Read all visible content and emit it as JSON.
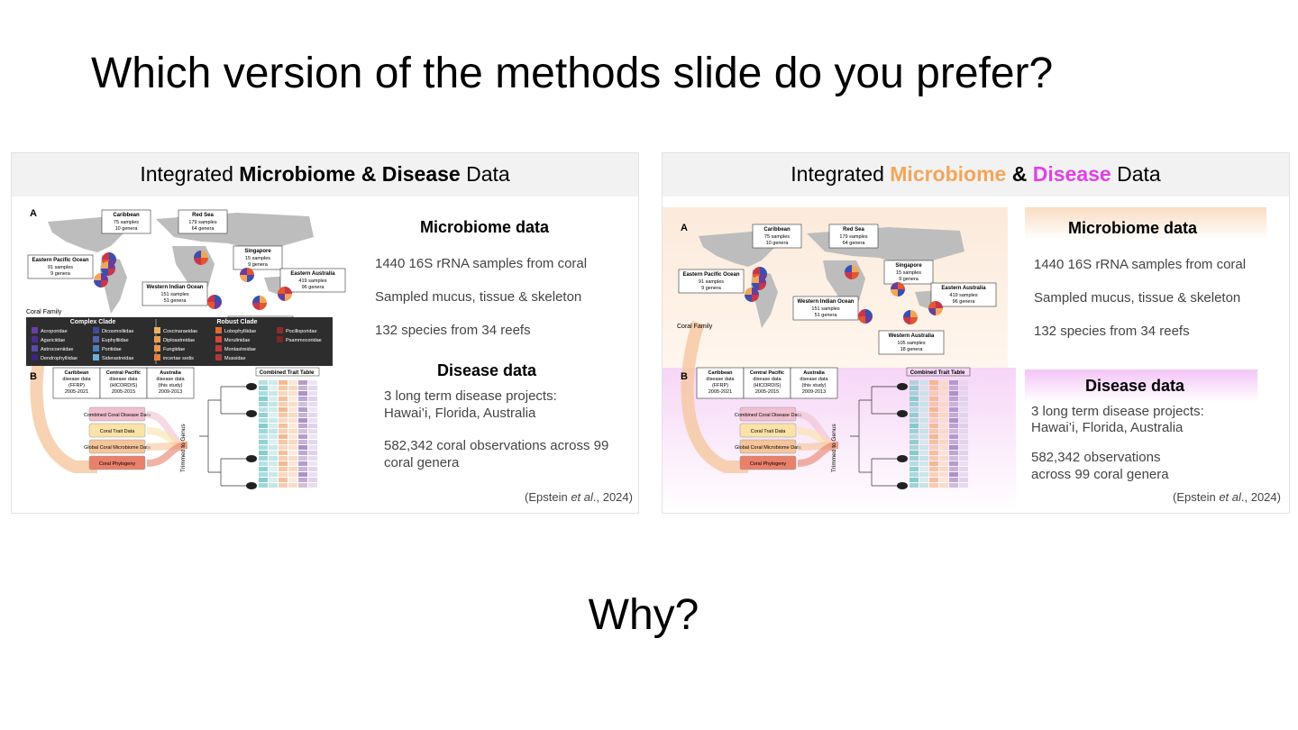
{
  "main_title": "Which version of the methods slide do you prefer?",
  "why": "Why?",
  "colors": {
    "microbiome": "#f2a65a",
    "disease": "#e040e8"
  },
  "figure": {
    "panel_a": "A",
    "panel_b": "B",
    "coral_family": "Coral Family",
    "regions": [
      {
        "name": "Caribbean",
        "samples": "75 samples",
        "genera": "10 genera"
      },
      {
        "name": "Red Sea",
        "samples": "179 samples",
        "genera": "64 genera"
      },
      {
        "name": "Eastern Pacific Ocean",
        "samples": "91 samples",
        "genera": "9 genera"
      },
      {
        "name": "Singapore",
        "samples": "15 samples",
        "genera": "9 genera"
      },
      {
        "name": "Eastern Australia",
        "samples": "419 samples",
        "genera": "96 genera"
      },
      {
        "name": "Western Indian Ocean",
        "samples": "151 samples",
        "genera": "51 genera"
      },
      {
        "name": "Western Australia",
        "samples": "105 samples",
        "genera": "18 genera"
      }
    ],
    "complex_clade": "Complex Clade",
    "robust_clade": "Robust Clade",
    "families": [
      "Acroporidae",
      "Agariciidae",
      "Astrocoeniidae",
      "Dendrophylliidae",
      "Dicosmoiliidae",
      "Euphylliidae",
      "Poritidae",
      "Siderastreidae",
      "Coscinaraeidae",
      "Diploastreidae",
      "Fungiidae",
      "incertae sedis",
      "Lobophylliidae",
      "Merulinidae",
      "Montastreidae",
      "Mussidae",
      "Pocilloporidae",
      "Psammocoridae"
    ],
    "disease_sources": [
      {
        "name": "Caribbean",
        "desc": "disease data",
        "proj": "(FFRP)",
        "years": "2005-2021"
      },
      {
        "name": "Central Pacific",
        "desc": "disease data",
        "proj": "(HICORDIS)",
        "years": "2005-2015"
      },
      {
        "name": "Australia",
        "desc": "disease data",
        "proj": "(this study)",
        "years": "2009-2013"
      }
    ],
    "data_boxes": [
      "Combined Coral Disease Data",
      "Coral Trait Data",
      "Global Coral Microbiome Data",
      "Coral Phylogeny"
    ],
    "trimmed": "Trimmed to Genus",
    "trait_table": "Combined Trait Table"
  },
  "left_slide": {
    "head_pre": "Integrated ",
    "head_bold": "Microbiome & Disease",
    "head_post": " Data",
    "micro_heading": "Microbiome data",
    "micro_items": [
      "1440 16S rRNA samples from coral",
      "Sampled mucus, tissue & skeleton",
      "132 species from 34 reefs"
    ],
    "disease_heading": "Disease data",
    "disease_line1": "3 long term disease projects:",
    "disease_line2": "Hawai’i, Florida, Australia",
    "obs_line1": "582,342 coral observations across 99",
    "obs_line2": "coral genera",
    "cite_pre": "(Epstein ",
    "cite_em": "et al",
    "cite_post": "., 2024)"
  },
  "right_slide": {
    "head_pre": "Integrated ",
    "head_micro": "Microbiome",
    "head_amp": " & ",
    "head_dis": "Disease",
    "head_post": " Data",
    "micro_heading": "Microbiome data",
    "micro_items": [
      "1440 16S rRNA samples from coral",
      "Sampled mucus, tissue & skeleton",
      "132 species from 34 reefs"
    ],
    "disease_heading": "Disease data",
    "disease_line1": "3 long term disease projects:",
    "disease_line2": "Hawai’i, Florida, Australia",
    "obs_line1": "582,342 observations",
    "obs_line2": "across 99 coral genera",
    "cite_pre": "(Epstein ",
    "cite_em": "et al",
    "cite_post": "., 2024)"
  }
}
